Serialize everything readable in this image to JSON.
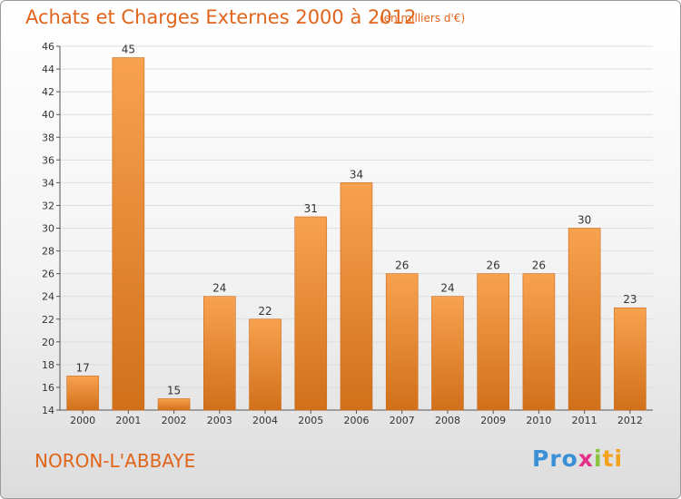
{
  "header": {
    "title": "Achats et Charges Externes 2000 à 2012",
    "unit": "(en milliers d'€)"
  },
  "footer": {
    "commune": "NORON-L'ABBAYE",
    "logo": [
      "Pro",
      "x",
      "i",
      "ti"
    ]
  },
  "colors": {
    "accent": "#e0641a",
    "bar_light": "#f7a24f",
    "bar_dark": "#d2701a",
    "grid": "#dddddd"
  },
  "chart_data": {
    "type": "bar",
    "title": "Achats et Charges Externes 2000 à 2012",
    "subtitle": "(en milliers d'€)",
    "xlabel": "",
    "ylabel": "",
    "categories": [
      "2000",
      "2001",
      "2002",
      "2003",
      "2004",
      "2005",
      "2006",
      "2007",
      "2008",
      "2009",
      "2010",
      "2011",
      "2012"
    ],
    "values": [
      17,
      45,
      15,
      24,
      22,
      31,
      34,
      26,
      24,
      26,
      26,
      30,
      23
    ],
    "ylim": [
      14,
      46
    ],
    "yticks": [
      14,
      16,
      18,
      20,
      22,
      24,
      26,
      28,
      30,
      32,
      34,
      36,
      38,
      40,
      42,
      44,
      46
    ],
    "grid": true,
    "legend": "none"
  }
}
